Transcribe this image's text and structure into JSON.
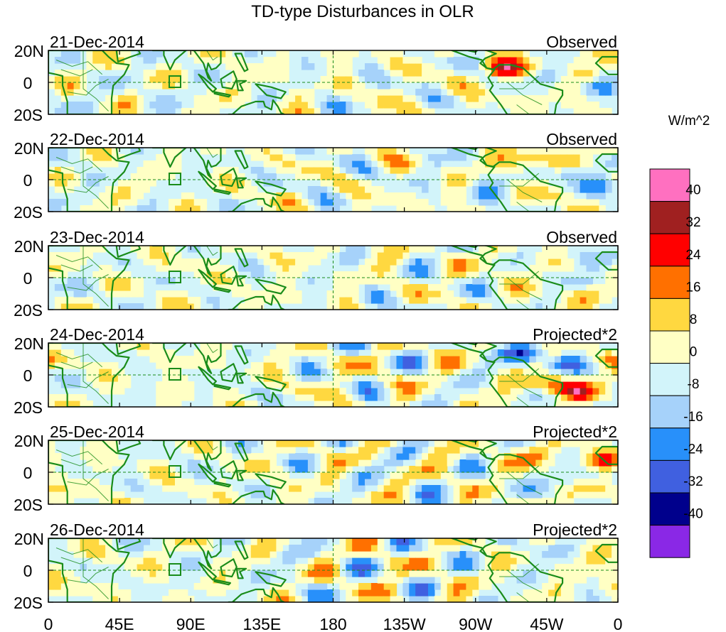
{
  "title": "TD-type Disturbances in OLR",
  "colorbar": {
    "units": "W/m^2",
    "levels": [
      "40",
      "32",
      "24",
      "16",
      "8",
      "0",
      "-8",
      "-16",
      "-24",
      "-32",
      "-40"
    ],
    "colors": [
      "#ff70c0",
      "#a02020",
      "#ff0000",
      "#ff7000",
      "#ffd840",
      "#ffffc4",
      "#d2f4fa",
      "#a6d2fa",
      "#2890fa",
      "#4060e0",
      "#00008c",
      "#8a28e6"
    ]
  },
  "coastline_color": "#1a8c1a",
  "chart_data": {
    "type": "heatmap",
    "title": "TD-type Disturbances in OLR",
    "field": "OLR anomaly (W/m^2)",
    "x_ticks": [
      "0",
      "45E",
      "90E",
      "135E",
      "180",
      "135W",
      "90W",
      "45W",
      "0"
    ],
    "x_range_deg": [
      0,
      360
    ],
    "y_ticks": [
      "20N",
      "0",
      "20S"
    ],
    "y_range_deg": [
      -20,
      20
    ],
    "reference_lines": [
      "equator",
      "180"
    ],
    "box_marker": "about 80E, equator",
    "panels": [
      {
        "date": "21-Dec-2014",
        "label": "Observed",
        "features": [
          {
            "lon": -72,
            "lat": 8,
            "v": 26
          },
          {
            "lon": -40,
            "lat": 4,
            "v": -18
          },
          {
            "lon": -20,
            "lat": 6,
            "v": 12
          },
          {
            "lon": -10,
            "lat": -4,
            "v": -14
          },
          {
            "lon": -30,
            "lat": -10,
            "v": 10
          },
          {
            "lon": -45,
            "lat": 14,
            "v": 8
          },
          {
            "lon": -60,
            "lat": 10,
            "v": 8
          }
        ]
      },
      {
        "date": "22-Dec-2014",
        "label": "Observed",
        "features": [
          {
            "lon": -50,
            "lat": 14,
            "v": 20
          },
          {
            "lon": -30,
            "lat": 4,
            "v": -16
          },
          {
            "lon": -40,
            "lat": -10,
            "v": 14
          },
          {
            "lon": -10,
            "lat": -4,
            "v": -16
          },
          {
            "lon": -80,
            "lat": -6,
            "v": -12
          },
          {
            "lon": -65,
            "lat": 8,
            "v": 10
          }
        ]
      },
      {
        "date": "23-Dec-2014",
        "label": "Observed",
        "features": [
          {
            "lon": -30,
            "lat": 12,
            "v": -14
          },
          {
            "lon": -20,
            "lat": -10,
            "v": 12
          },
          {
            "lon": -60,
            "lat": 8,
            "v": 10
          },
          {
            "lon": -5,
            "lat": -4,
            "v": -10
          }
        ]
      },
      {
        "date": "24-Dec-2014",
        "label": "Projected*2",
        "features": [
          {
            "lon": -60,
            "lat": 14,
            "v": -24
          },
          {
            "lon": -30,
            "lat": 8,
            "v": -30
          },
          {
            "lon": -15,
            "lat": 10,
            "v": 20
          },
          {
            "lon": -45,
            "lat": -6,
            "v": 22
          },
          {
            "lon": -25,
            "lat": -10,
            "v": 24
          }
        ]
      },
      {
        "date": "25-Dec-2014",
        "label": "Projected*2",
        "features": [
          {
            "lon": -55,
            "lat": 10,
            "v": 16
          },
          {
            "lon": -15,
            "lat": 8,
            "v": 22
          },
          {
            "lon": -30,
            "lat": -6,
            "v": -16
          },
          {
            "lon": -10,
            "lat": -10,
            "v": 16
          }
        ]
      },
      {
        "date": "26-Dec-2014",
        "label": "Projected*2",
        "features": [
          {
            "lon": -40,
            "lat": 12,
            "v": -10
          },
          {
            "lon": -15,
            "lat": 10,
            "v": 12
          },
          {
            "lon": -10,
            "lat": -12,
            "v": 10
          }
        ]
      }
    ]
  }
}
